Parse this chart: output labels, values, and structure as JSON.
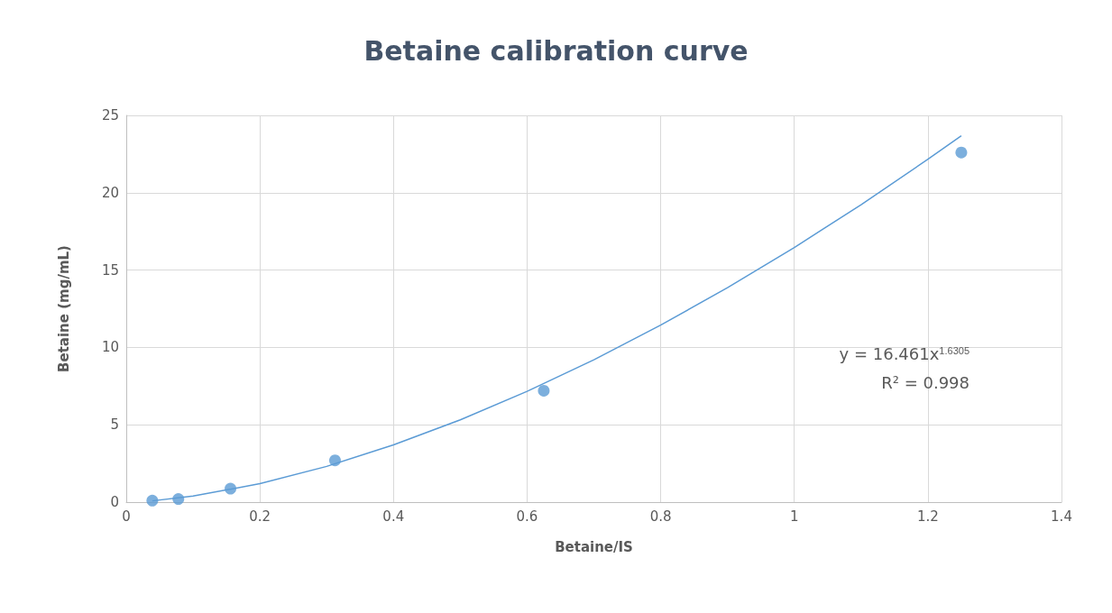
{
  "chart_data": {
    "type": "scatter",
    "title": "Betaine calibration curve",
    "xlabel": "Betaine/IS",
    "ylabel": "Betaine (mg/mL)",
    "xlim": [
      0,
      1.4
    ],
    "xticks": [
      0,
      0.2,
      0.4,
      0.6,
      0.8,
      1,
      1.2,
      1.4
    ],
    "ylim": [
      0,
      25
    ],
    "yticks": [
      0,
      5,
      10,
      15,
      20,
      25
    ],
    "grid": true,
    "marker": "circle",
    "annotations": [
      "y = 16.461x$^{1.6305}$",
      "R² = 0.998"
    ],
    "series": [
      {
        "color": "#5b9bd5",
        "x": [
          0.039,
          0.078,
          0.156,
          0.3125,
          0.625,
          1.25
        ],
        "values": [
          0.1,
          0.2,
          0.87,
          2.7,
          7.2,
          22.6
        ]
      },
      {
        "type": "line",
        "color": "#5b9bd5",
        "marker": "none",
        "line_style": "solid",
        "x": [
          0.039,
          0.1,
          0.2,
          0.3,
          0.4,
          0.5,
          0.6,
          0.7,
          0.8,
          0.9,
          1.0,
          1.1,
          1.2,
          1.25
        ],
        "values": [
          0.08,
          0.39,
          1.19,
          2.31,
          3.7,
          5.32,
          7.16,
          9.2,
          11.44,
          13.86,
          16.46,
          19.23,
          22.16,
          23.68
        ]
      }
    ]
  }
}
